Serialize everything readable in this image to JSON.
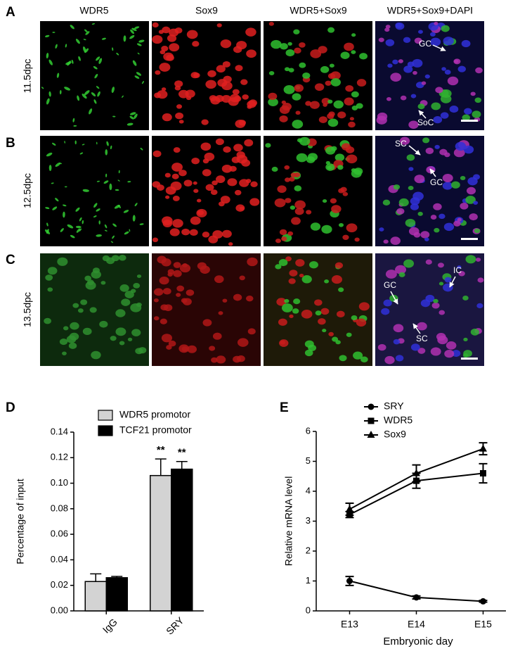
{
  "figure": {
    "panel_letters": [
      "A",
      "B",
      "C",
      "D",
      "E"
    ],
    "columns": [
      "WDR5",
      "Sox9",
      "WDR5+Sox9",
      "WDR5+Sox9+DAPI"
    ],
    "rows": [
      "11.5dpc",
      "12.5dpc",
      "13.5dpc"
    ],
    "annotations": [
      "GC",
      "SoC",
      "SC",
      "GC",
      "IC",
      "GC",
      "SC"
    ]
  },
  "chart_data": [
    {
      "type": "bar",
      "y_label": "Percentage of input",
      "categories": [
        "IgG",
        "SRY"
      ],
      "series": [
        {
          "name": "WDR5 promotor",
          "color": "#d3d3d3",
          "values": [
            0.023,
            0.106
          ],
          "errors": [
            0.006,
            0.013
          ],
          "significance": [
            null,
            "**"
          ]
        },
        {
          "name": "TCF21 promotor",
          "color": "#000000",
          "values": [
            0.026,
            0.111
          ],
          "errors": [
            0.001,
            0.006
          ],
          "significance": [
            null,
            "**"
          ]
        }
      ],
      "ylim": [
        0,
        0.14
      ],
      "yticks": [
        {
          "value": 0,
          "label": "0.00"
        },
        {
          "value": 0.02,
          "label": "0.02"
        },
        {
          "value": 0.04,
          "label": "0.04"
        },
        {
          "value": 0.06,
          "label": "0.06"
        },
        {
          "value": 0.08,
          "label": "0.08"
        },
        {
          "value": 0.1,
          "label": "0.10"
        },
        {
          "value": 0.12,
          "label": "0.12"
        },
        {
          "value": 0.14,
          "label": "0.14"
        }
      ]
    },
    {
      "type": "line",
      "x_label": "Embryonic day",
      "y_label": "Relative mRNA level",
      "categories": [
        "E13",
        "E14",
        "E15"
      ],
      "series": [
        {
          "name": "SRY",
          "color": "#000000",
          "marker": "circle",
          "values": [
            1.0,
            0.45,
            0.32
          ],
          "errors": [
            0.15,
            0.05,
            0.03
          ]
        },
        {
          "name": "WDR5",
          "color": "#000000",
          "marker": "square",
          "values": [
            3.22,
            4.35,
            4.6
          ],
          "errors": [
            0.1,
            0.25,
            0.32
          ]
        },
        {
          "name": "Sox9",
          "color": "#000000",
          "marker": "triangle",
          "values": [
            3.4,
            4.6,
            5.42
          ],
          "errors": [
            0.2,
            0.28,
            0.2
          ]
        }
      ],
      "ylim": [
        0,
        6
      ],
      "yticks": [
        0,
        1,
        2,
        3,
        4,
        5,
        6
      ]
    }
  ]
}
